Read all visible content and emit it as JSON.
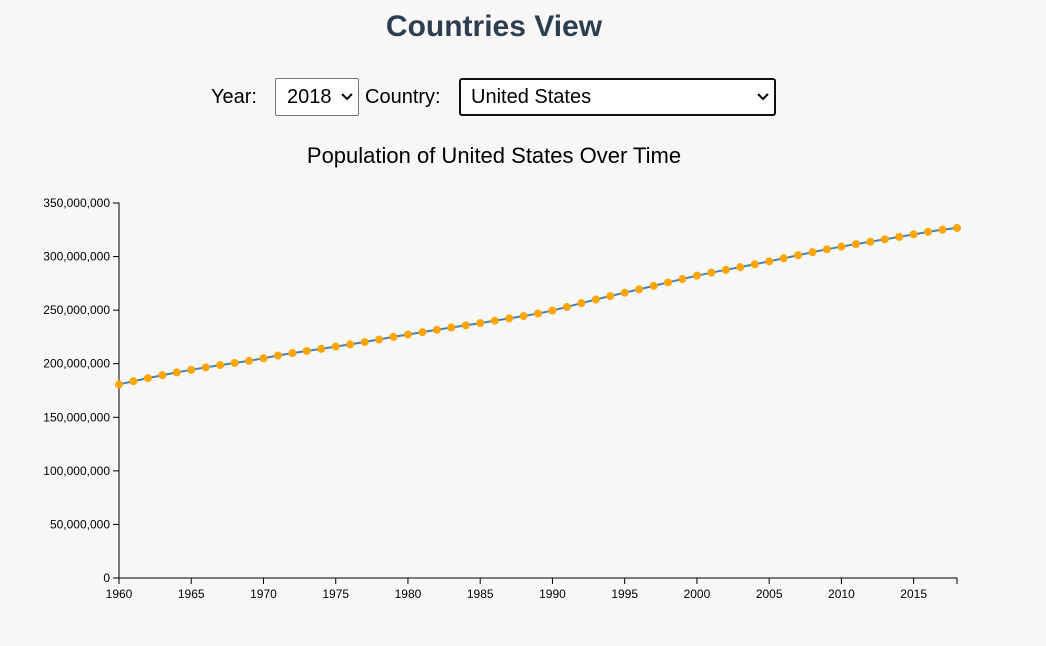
{
  "header": {
    "title": "Countries View"
  },
  "controls": {
    "year_label": "Year:",
    "year_value": "2018",
    "country_label": "Country:",
    "country_value": "United States"
  },
  "colors": {
    "title": "#2c3e50",
    "line": "#4682b4",
    "point": "#ffa500"
  },
  "chart_data": {
    "type": "line",
    "title": "Population of United States Over Time",
    "xlabel": "",
    "ylabel": "",
    "xlim": [
      1960,
      2018
    ],
    "ylim": [
      0,
      350000000
    ],
    "x_ticks": [
      1960,
      1965,
      1970,
      1975,
      1980,
      1985,
      1990,
      1995,
      2000,
      2005,
      2010,
      2015
    ],
    "y_ticks": [
      0,
      50000000,
      100000000,
      150000000,
      200000000,
      250000000,
      300000000,
      350000000
    ],
    "x_tick_labels": [
      "1960",
      "1965",
      "1970",
      "1975",
      "1980",
      "1985",
      "1990",
      "1995",
      "2000",
      "2005",
      "2010",
      "2015"
    ],
    "y_tick_labels": [
      "0",
      "50,000,000",
      "100,000,000",
      "150,000,000",
      "200,000,000",
      "250,000,000",
      "300,000,000",
      "350,000,000"
    ],
    "grid": false,
    "series": [
      {
        "x": [
          1960,
          1961,
          1962,
          1963,
          1964,
          1965,
          1966,
          1967,
          1968,
          1969,
          1970,
          1971,
          1972,
          1973,
          1974,
          1975,
          1976,
          1977,
          1978,
          1979,
          1980,
          1981,
          1982,
          1983,
          1984,
          1985,
          1986,
          1987,
          1988,
          1989,
          1990,
          1991,
          1992,
          1993,
          1994,
          1995,
          1996,
          1997,
          1998,
          1999,
          2000,
          2001,
          2002,
          2003,
          2004,
          2005,
          2006,
          2007,
          2008,
          2009,
          2010,
          2011,
          2012,
          2013,
          2014,
          2015,
          2016,
          2017,
          2018
        ],
        "values": [
          180671000,
          183691000,
          186538000,
          189242000,
          191889000,
          194303000,
          196560000,
          198712000,
          200706000,
          202677000,
          205052000,
          207661000,
          209896000,
          211909000,
          213854000,
          215973000,
          218035000,
          220239000,
          222585000,
          225055000,
          227225000,
          229466000,
          231664000,
          233792000,
          235825000,
          237924000,
          240133000,
          242289000,
          244499000,
          246819000,
          249623000,
          252981000,
          256514000,
          259919000,
          263126000,
          266278000,
          269394000,
          272657000,
          275854000,
          279040000,
          282162000,
          284969000,
          287625000,
          290108000,
          292805000,
          295517000,
          298380000,
          301231000,
          304094000,
          306772000,
          309327000,
          311583000,
          313878000,
          316060000,
          318386000,
          320742000,
          323072000,
          325122000,
          326688000
        ]
      }
    ]
  }
}
